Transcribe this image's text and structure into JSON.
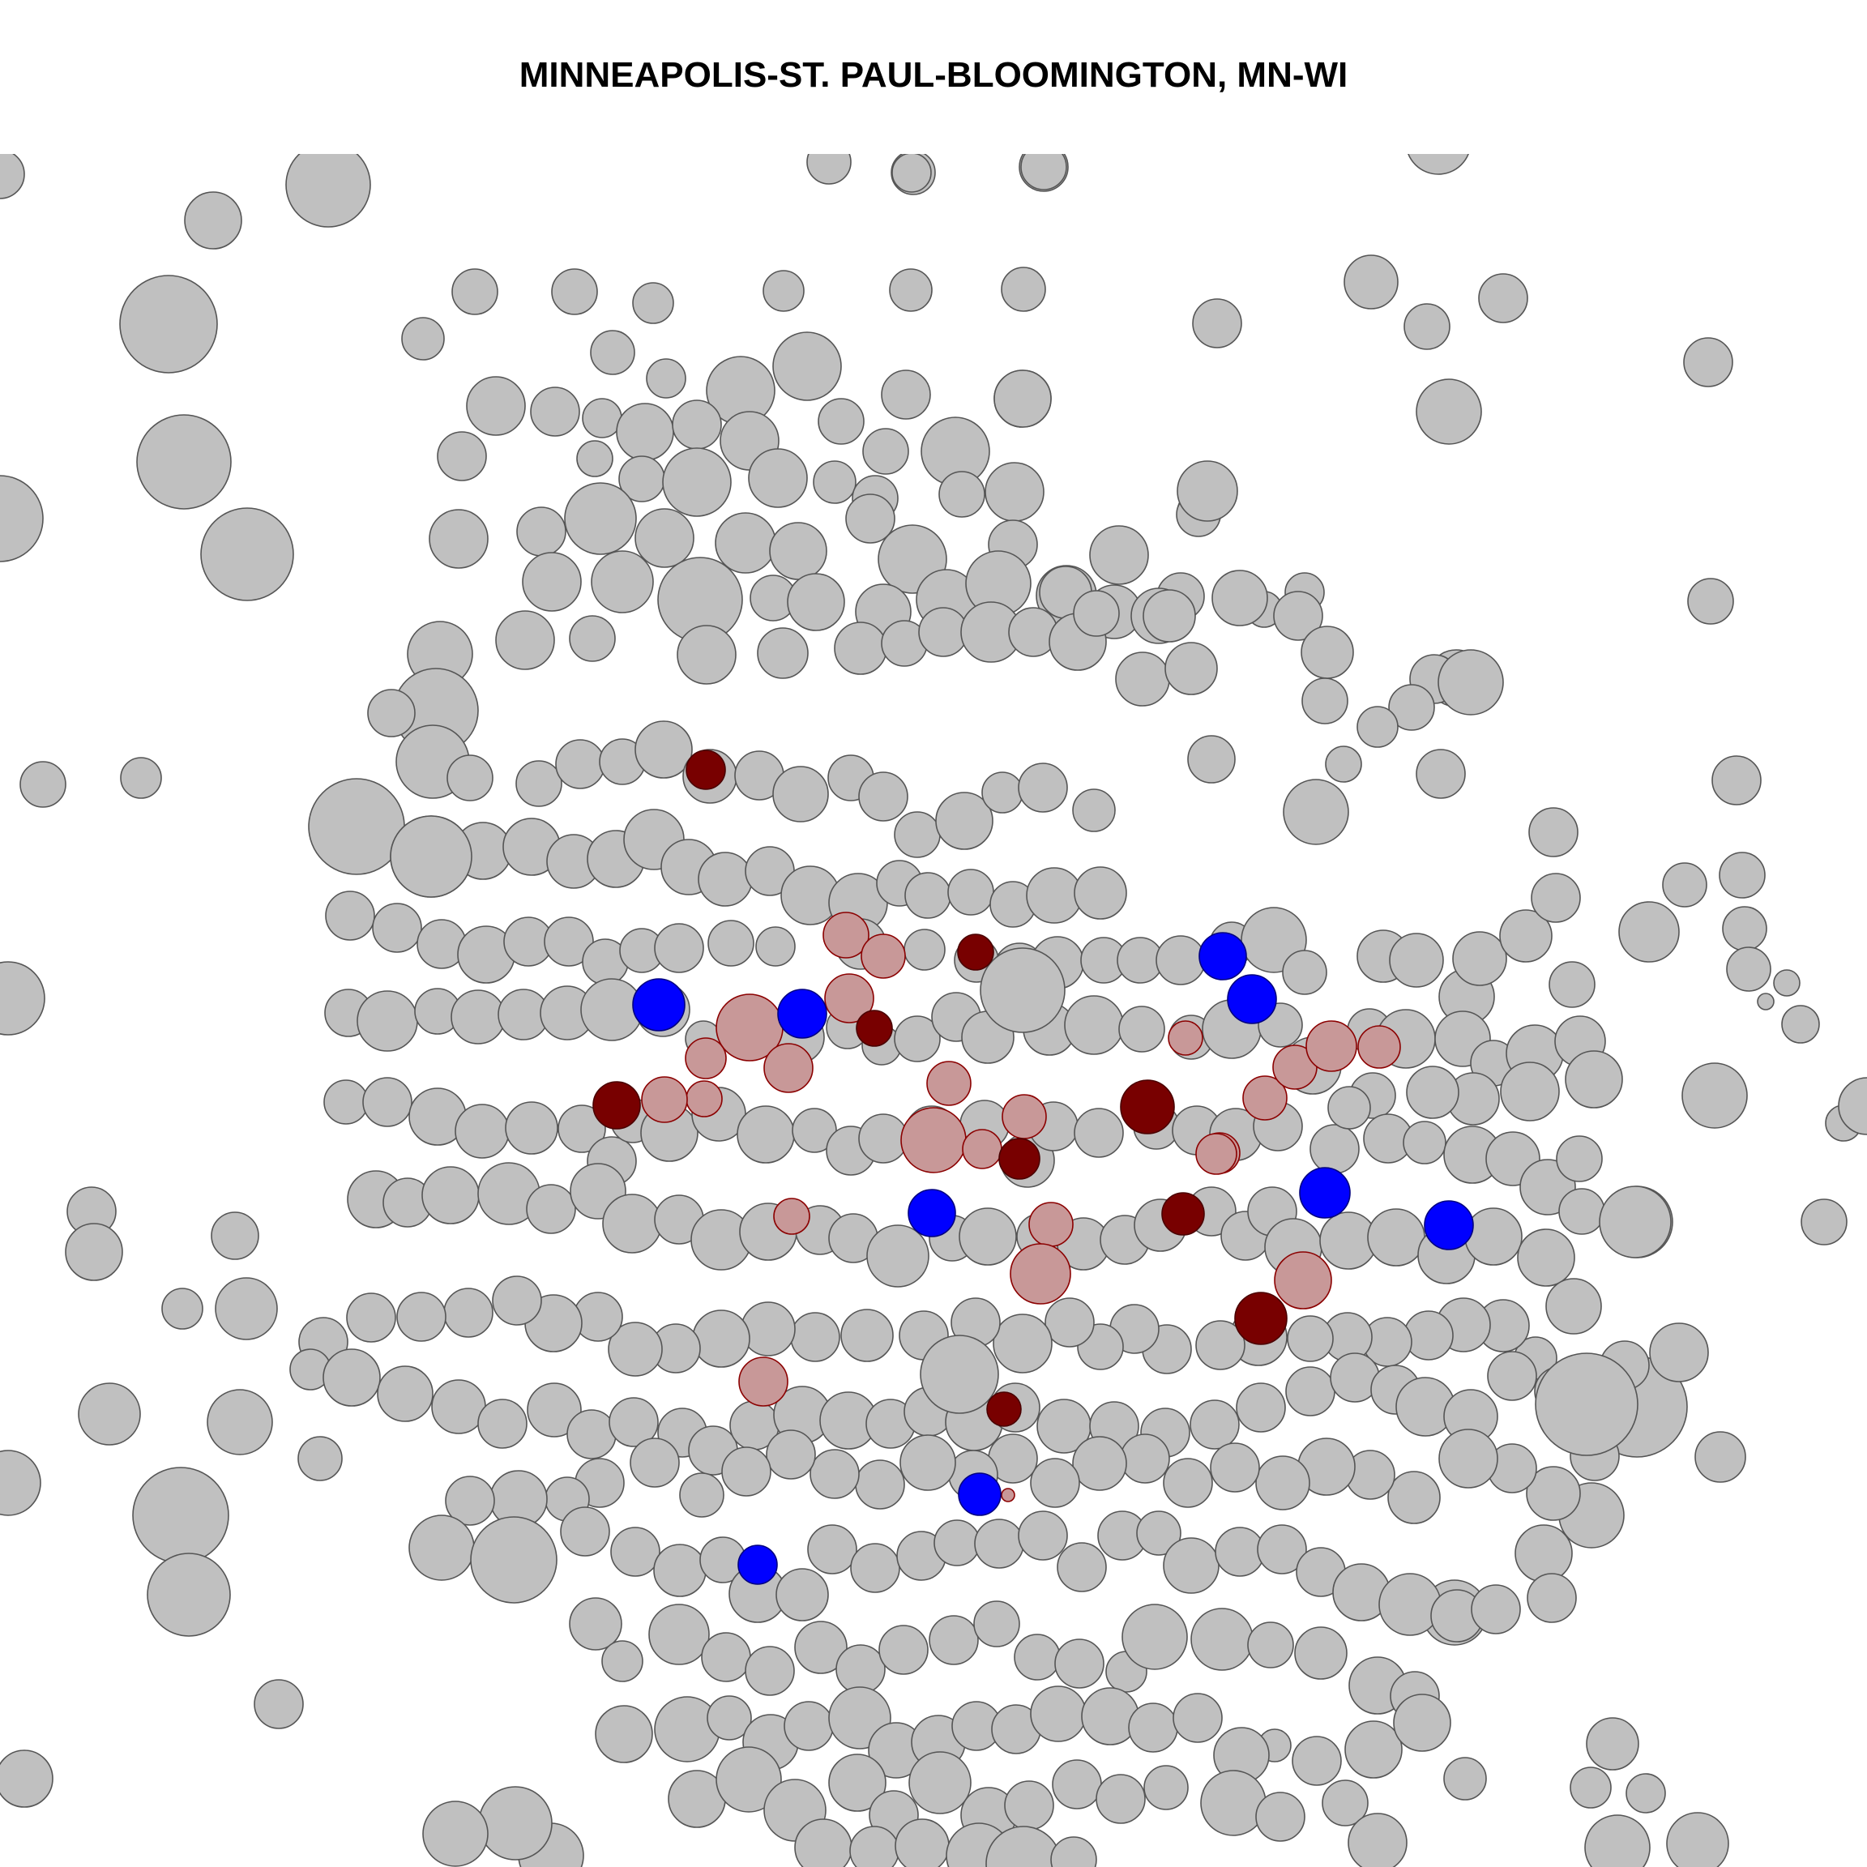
{
  "title": "MINNEAPOLIS-ST. PAUL-BLOOMINGTON, MN-WI",
  "legend": [],
  "colors": {
    "neutral": {
      "fill": "#c0c0c0",
      "stroke": "#555555"
    },
    "light_red": {
      "fill": "#c89898",
      "stroke": "#8b0000"
    },
    "dark_red": {
      "fill": "#780000",
      "stroke": "#4a0000"
    },
    "blue": {
      "fill": "#0000ff",
      "stroke": "#000080"
    }
  }
}
